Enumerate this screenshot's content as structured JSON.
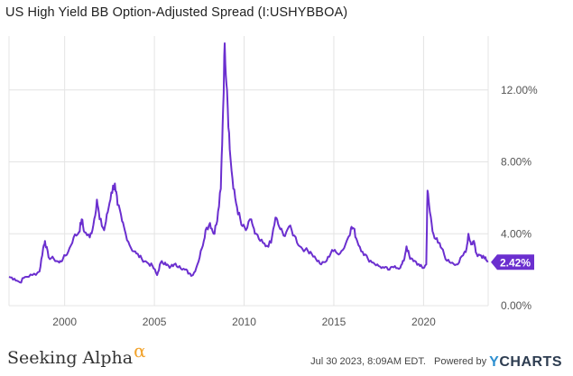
{
  "title": "US High Yield BB Option-Adjusted Spread (I:USHYBBOA)",
  "colors": {
    "line": "#6b2fcf",
    "badge": "#6b2fcf",
    "grid": "#e4e4e4",
    "axis_text": "#555555"
  },
  "chart_data": {
    "type": "line",
    "title": "US High Yield BB Option-Adjusted Spread (I:USHYBBOA)",
    "xlabel": "",
    "ylabel": "",
    "xlim": [
      1996.9,
      2023.6
    ],
    "ylim": [
      0,
      15
    ],
    "x_ticks": [
      2000,
      2005,
      2010,
      2015,
      2020
    ],
    "x_tick_labels": [
      "2000",
      "2005",
      "2010",
      "2015",
      "2020"
    ],
    "y_ticks": [
      0,
      4,
      8,
      12
    ],
    "y_tick_labels": [
      "0.00%",
      "4.00%",
      "8.00%",
      "12.00%"
    ],
    "grid": true,
    "y_axis_position": "right",
    "last_value_label": "2.42%",
    "series": [
      {
        "points": [
          [
            1996.9,
            1.6
          ],
          [
            1997.2,
            1.5
          ],
          [
            1997.5,
            1.3
          ],
          [
            1997.8,
            1.6
          ],
          [
            1998.2,
            1.7
          ],
          [
            1998.6,
            1.9
          ],
          [
            1998.8,
            3.2
          ],
          [
            1998.9,
            3.6
          ],
          [
            1999.1,
            2.7
          ],
          [
            1999.4,
            2.6
          ],
          [
            1999.7,
            2.4
          ],
          [
            1999.9,
            2.6
          ],
          [
            2000.2,
            3.0
          ],
          [
            2000.5,
            3.8
          ],
          [
            2000.8,
            4.1
          ],
          [
            2000.95,
            4.8
          ],
          [
            2001.1,
            4.1
          ],
          [
            2001.4,
            3.8
          ],
          [
            2001.6,
            4.5
          ],
          [
            2001.8,
            5.9
          ],
          [
            2001.95,
            4.8
          ],
          [
            2002.2,
            4.2
          ],
          [
            2002.4,
            5.2
          ],
          [
            2002.6,
            6.3
          ],
          [
            2002.8,
            6.8
          ],
          [
            2002.95,
            5.6
          ],
          [
            2003.2,
            4.7
          ],
          [
            2003.4,
            4.0
          ],
          [
            2003.7,
            3.2
          ],
          [
            2004.0,
            2.9
          ],
          [
            2004.3,
            2.6
          ],
          [
            2004.6,
            2.4
          ],
          [
            2004.9,
            2.2
          ],
          [
            2005.15,
            1.7
          ],
          [
            2005.35,
            2.4
          ],
          [
            2005.6,
            2.4
          ],
          [
            2005.85,
            2.1
          ],
          [
            2006.1,
            2.3
          ],
          [
            2006.4,
            2.2
          ],
          [
            2006.7,
            2.0
          ],
          [
            2006.95,
            1.8
          ],
          [
            2007.15,
            1.7
          ],
          [
            2007.4,
            2.3
          ],
          [
            2007.65,
            3.2
          ],
          [
            2007.85,
            4.2
          ],
          [
            2008.1,
            4.6
          ],
          [
            2008.3,
            4.0
          ],
          [
            2008.5,
            4.7
          ],
          [
            2008.7,
            6.5
          ],
          [
            2008.8,
            10.0
          ],
          [
            2008.92,
            14.6
          ],
          [
            2009.05,
            12.0
          ],
          [
            2009.2,
            8.7
          ],
          [
            2009.4,
            6.5
          ],
          [
            2009.6,
            5.5
          ],
          [
            2009.85,
            4.5
          ],
          [
            2010.1,
            4.2
          ],
          [
            2010.4,
            4.8
          ],
          [
            2010.6,
            4.0
          ],
          [
            2010.9,
            3.6
          ],
          [
            2011.2,
            3.3
          ],
          [
            2011.5,
            3.5
          ],
          [
            2011.75,
            4.9
          ],
          [
            2011.95,
            4.4
          ],
          [
            2012.2,
            3.9
          ],
          [
            2012.5,
            4.4
          ],
          [
            2012.8,
            3.9
          ],
          [
            2013.1,
            3.3
          ],
          [
            2013.4,
            3.1
          ],
          [
            2013.7,
            3.0
          ],
          [
            2014.0,
            2.6
          ],
          [
            2014.3,
            2.3
          ],
          [
            2014.6,
            2.5
          ],
          [
            2014.9,
            3.1
          ],
          [
            2015.2,
            2.9
          ],
          [
            2015.5,
            3.1
          ],
          [
            2015.8,
            3.8
          ],
          [
            2015.95,
            4.3
          ],
          [
            2016.1,
            4.3
          ],
          [
            2016.3,
            3.6
          ],
          [
            2016.6,
            3.0
          ],
          [
            2016.9,
            2.6
          ],
          [
            2017.2,
            2.4
          ],
          [
            2017.5,
            2.2
          ],
          [
            2017.8,
            2.1
          ],
          [
            2018.1,
            2.0
          ],
          [
            2018.4,
            2.2
          ],
          [
            2018.7,
            2.1
          ],
          [
            2018.9,
            2.5
          ],
          [
            2019.05,
            3.3
          ],
          [
            2019.25,
            2.6
          ],
          [
            2019.5,
            2.5
          ],
          [
            2019.8,
            2.2
          ],
          [
            2020.0,
            2.1
          ],
          [
            2020.15,
            2.3
          ],
          [
            2020.22,
            6.4
          ],
          [
            2020.35,
            5.2
          ],
          [
            2020.55,
            4.0
          ],
          [
            2020.8,
            3.5
          ],
          [
            2021.0,
            3.2
          ],
          [
            2021.3,
            2.5
          ],
          [
            2021.6,
            2.4
          ],
          [
            2021.9,
            2.3
          ],
          [
            2022.2,
            2.8
          ],
          [
            2022.4,
            3.2
          ],
          [
            2022.5,
            4.0
          ],
          [
            2022.65,
            3.4
          ],
          [
            2022.8,
            3.6
          ],
          [
            2022.95,
            2.9
          ],
          [
            2023.2,
            2.8
          ],
          [
            2023.45,
            2.7
          ],
          [
            2023.58,
            2.42
          ]
        ]
      }
    ]
  },
  "footer": {
    "brand_text": "Seeking Alpha",
    "brand_symbol": "α",
    "timestamp": "Jul 30 2023, 8:09AM EDT.",
    "powered_by": "Powered by",
    "ycharts_y": "Y",
    "ycharts_rest": "CHARTS"
  }
}
